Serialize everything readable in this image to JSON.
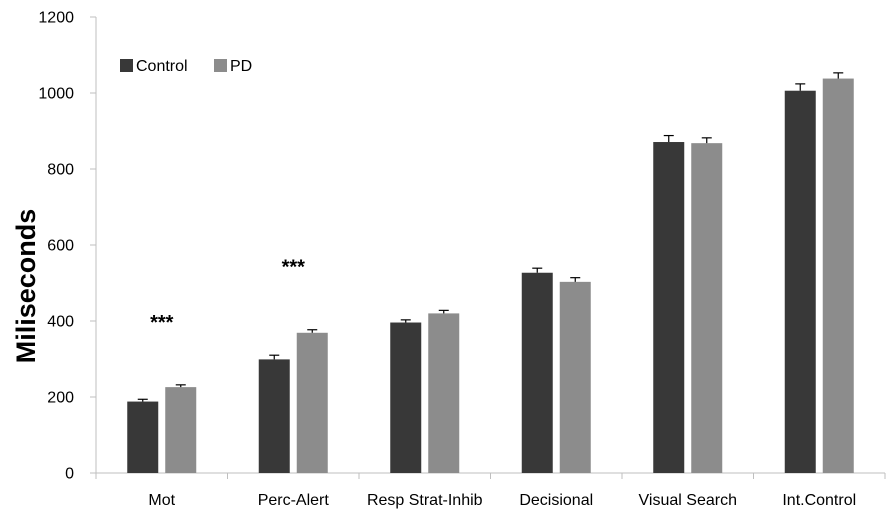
{
  "chart_data": {
    "type": "bar",
    "categories": [
      "Mot",
      "Perc-Alert",
      "Resp Strat-Inhib",
      "Decisional",
      "Visual Search",
      "Int.Control"
    ],
    "series": [
      {
        "name": "Control",
        "color": "#383838",
        "values": [
          188,
          299,
          396,
          527,
          871,
          1006
        ],
        "errors": [
          6,
          11,
          7,
          12,
          17,
          18
        ]
      },
      {
        "name": "PD",
        "color": "#8c8c8c",
        "values": [
          226,
          369,
          420,
          503,
          868,
          1038
        ],
        "errors": [
          6,
          8,
          8,
          11,
          14,
          15
        ]
      }
    ],
    "ylabel": "Miliseconds",
    "xlabel": "",
    "ylim": [
      0,
      1200
    ],
    "yticks": [
      0,
      200,
      400,
      600,
      800,
      1000,
      1200
    ],
    "grid": false,
    "legend_position": "top-left",
    "annotations": [
      {
        "category": "Mot",
        "text": "***"
      },
      {
        "category": "Perc-Alert",
        "text": "***"
      }
    ]
  }
}
